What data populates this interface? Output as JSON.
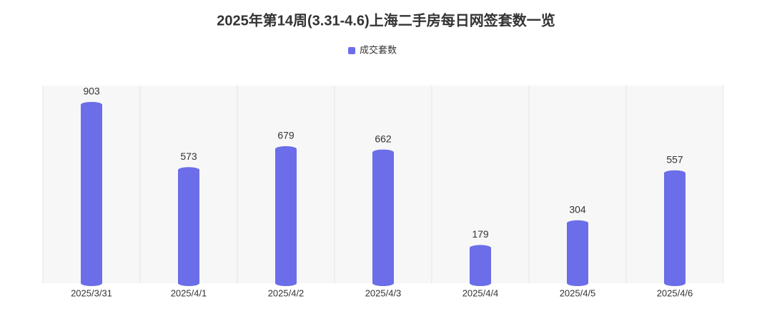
{
  "chart_data": {
    "type": "bar",
    "title": "2025年第14周(3.31-4.6)上海二手房每日网签套数一览",
    "categories": [
      "2025/3/31",
      "2025/4/1",
      "2025/4/2",
      "2025/4/3",
      "2025/4/4",
      "2025/4/5",
      "2025/4/6"
    ],
    "series": [
      {
        "name": "成交套数",
        "color": "#6b6ee8",
        "values": [
          903,
          573,
          679,
          662,
          179,
          304,
          557
        ]
      }
    ],
    "ylim": [
      0,
      1000
    ]
  }
}
